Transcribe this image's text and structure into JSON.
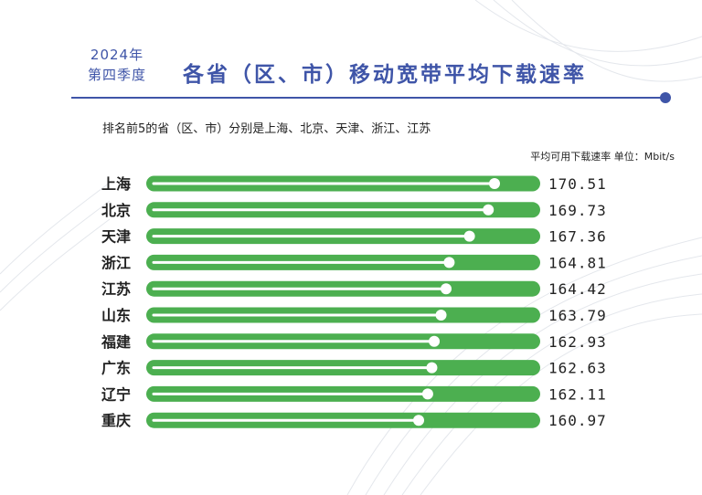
{
  "header": {
    "year": "2024年",
    "quarter": "第四季度",
    "title": "各省（区、市）移动宽带平均下载速率",
    "subtitle": "排名前5的省（区、市）分别是上海、北京、天津、浙江、江苏",
    "unit_note": "平均可用下载速率 单位：Mbit/s"
  },
  "colors": {
    "accent": "#3f55a8",
    "bar": "#4caf50",
    "track": "#ffffff"
  },
  "chart_data": {
    "type": "bar",
    "orientation": "horizontal",
    "title": "各省（区、市）移动宽带平均下载速率",
    "unit": "Mbit/s",
    "categories": [
      "上海",
      "北京",
      "天津",
      "浙江",
      "江苏",
      "山东",
      "福建",
      "广东",
      "辽宁",
      "重庆"
    ],
    "values": [
      170.51,
      169.73,
      167.36,
      164.81,
      164.42,
      163.79,
      162.93,
      162.63,
      162.11,
      160.97
    ],
    "value_labels": [
      "170.51",
      "169.73",
      "167.36",
      "164.81",
      "164.42",
      "163.79",
      "162.93",
      "162.63",
      "162.11",
      "160.97"
    ],
    "grid": false,
    "legend": "none"
  }
}
